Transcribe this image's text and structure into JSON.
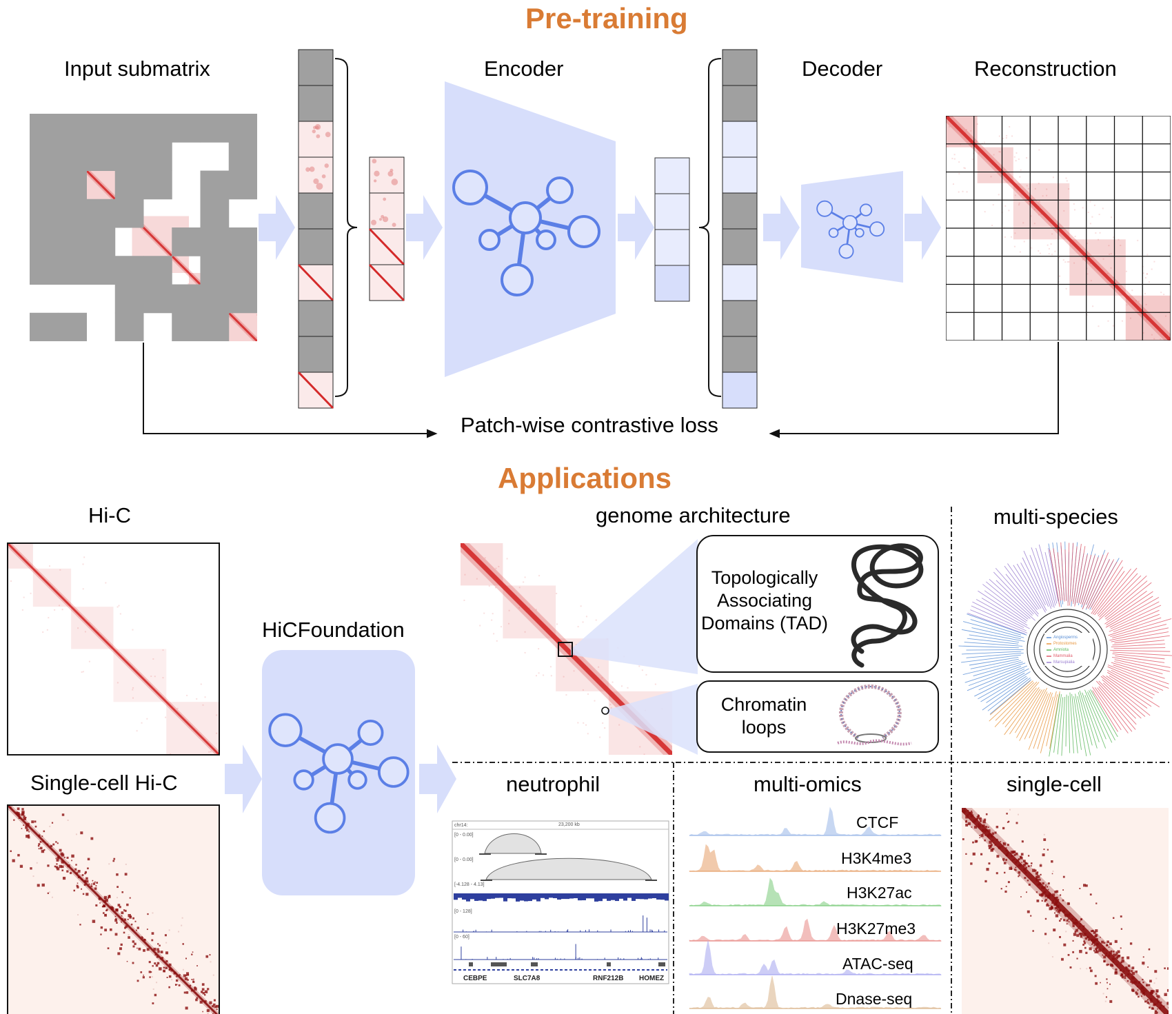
{
  "headings": {
    "pretraining": "Pre-training",
    "applications": "Applications"
  },
  "pretraining": {
    "input_label": "Input submatrix",
    "encoder_label": "Encoder",
    "decoder_label": "Decoder",
    "reconstruction_label": "Reconstruction",
    "loss_label": "Patch-wise contrastive loss"
  },
  "applications": {
    "hic_label": "Hi-C",
    "single_cell_hic_label": "Single-cell Hi-C",
    "model_label": "HiCFoundation",
    "genome_architecture_label": "genome architecture",
    "tad_label": "Topologically Associating Domains (TAD)",
    "loops_label": "Chromatin loops",
    "multi_species_label": "multi-species",
    "neutrophil_label": "neutrophil",
    "multi_omics_label": "multi-omics",
    "single_cell_label": "single-cell",
    "tracks": [
      "CTCF",
      "H3K4me3",
      "H3K27ac",
      "H3K27me3",
      "ATAC-seq",
      "Dnase-seq"
    ],
    "track_colors": [
      "#9bb8e8",
      "#e6a06a",
      "#7ccc7c",
      "#e88a86",
      "#a6a6f0",
      "#d9b48a"
    ],
    "igv": {
      "chrom": "chr14:",
      "scale": "23,200 kb",
      "ranges": [
        "[0 - 0.00]",
        "[0 - 0.00]",
        "[-4.128 - 4.13]",
        "[0 - 128]",
        "[0 - 60]"
      ],
      "genes": [
        "CEBPE",
        "SLC7A8",
        "RNF212B",
        "HOMEZ"
      ]
    },
    "species_legend": [
      "Angiosperms",
      "Protostomes",
      "Amniota",
      "Mammalia",
      "Marsupialia"
    ],
    "species_legend_colors": [
      "#5a8fd6",
      "#e8963e",
      "#5cb85c",
      "#e05b6b",
      "#9b7fd1"
    ]
  },
  "colors": {
    "heading": "#d97b34",
    "hic_red": "#d42a2a",
    "single_cell_red": "#8b0f0f",
    "masked_gray": "#a0a0a0",
    "model_blue": "#d7defb",
    "node_blue": "#5b7fe6"
  }
}
